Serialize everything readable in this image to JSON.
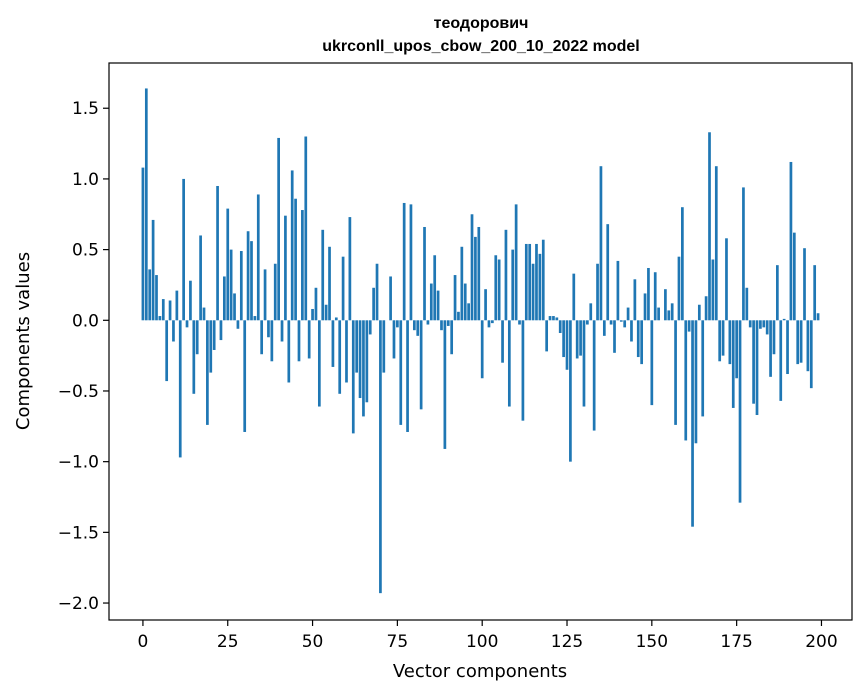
{
  "chart_data": {
    "type": "bar",
    "title_line1": "теодорович",
    "title_line2": "ukrconll_upos_cbow_200_10_2022 model",
    "xlabel": "Vector components",
    "ylabel": "Components values",
    "xlim": [
      -10,
      209
    ],
    "ylim": [
      -2.12,
      1.82
    ],
    "xticks": [
      0,
      25,
      50,
      75,
      100,
      125,
      150,
      175,
      200
    ],
    "xtick_labels": [
      "0",
      "25",
      "50",
      "75",
      "100",
      "125",
      "150",
      "175",
      "200"
    ],
    "yticks": [
      1.5,
      1.0,
      0.5,
      0.0,
      -0.5,
      -1.0,
      -1.5,
      -2.0
    ],
    "ytick_labels": [
      "1.5",
      "1.0",
      "0.5",
      "0.0",
      "−0.5",
      "−1.0",
      "−1.5",
      "−2.0"
    ],
    "bar_color": "#1f77b4",
    "grid": false,
    "x": [
      0,
      1,
      2,
      3,
      4,
      5,
      6,
      7,
      8,
      9,
      10,
      11,
      12,
      13,
      14,
      15,
      16,
      17,
      18,
      19,
      20,
      21,
      22,
      23,
      24,
      25,
      26,
      27,
      28,
      29,
      30,
      31,
      32,
      33,
      34,
      35,
      36,
      37,
      38,
      39,
      40,
      41,
      42,
      43,
      44,
      45,
      46,
      47,
      48,
      49,
      50,
      51,
      52,
      53,
      54,
      55,
      56,
      57,
      58,
      59,
      60,
      61,
      62,
      63,
      64,
      65,
      66,
      67,
      68,
      69,
      70,
      71,
      72,
      73,
      74,
      75,
      76,
      77,
      78,
      79,
      80,
      81,
      82,
      83,
      84,
      85,
      86,
      87,
      88,
      89,
      90,
      91,
      92,
      93,
      94,
      95,
      96,
      97,
      98,
      99,
      100,
      101,
      102,
      103,
      104,
      105,
      106,
      107,
      108,
      109,
      110,
      111,
      112,
      113,
      114,
      115,
      116,
      117,
      118,
      119,
      120,
      121,
      122,
      123,
      124,
      125,
      126,
      127,
      128,
      129,
      130,
      131,
      132,
      133,
      134,
      135,
      136,
      137,
      138,
      139,
      140,
      141,
      142,
      143,
      144,
      145,
      146,
      147,
      148,
      149,
      150,
      151,
      152,
      153,
      154,
      155,
      156,
      157,
      158,
      159,
      160,
      161,
      162,
      163,
      164,
      165,
      166,
      167,
      168,
      169,
      170,
      171,
      172,
      173,
      174,
      175,
      176,
      177,
      178,
      179,
      180,
      181,
      182,
      183,
      184,
      185,
      186,
      187,
      188,
      189,
      190,
      191,
      192,
      193,
      194,
      195,
      196,
      197,
      198,
      199
    ],
    "values": [
      1.08,
      1.64,
      0.36,
      0.71,
      0.32,
      0.03,
      0.15,
      -0.43,
      0.14,
      -0.15,
      0.21,
      -0.97,
      1.0,
      -0.05,
      0.28,
      -0.52,
      -0.24,
      0.6,
      0.09,
      -0.74,
      -0.37,
      -0.21,
      0.95,
      -0.14,
      0.31,
      0.79,
      0.5,
      0.19,
      -0.06,
      0.49,
      -0.79,
      0.63,
      0.56,
      0.03,
      0.89,
      -0.24,
      0.36,
      -0.12,
      -0.29,
      0.4,
      1.29,
      -0.15,
      0.74,
      -0.44,
      1.06,
      0.86,
      -0.29,
      0.78,
      1.3,
      -0.27,
      0.08,
      0.23,
      -0.61,
      0.64,
      0.11,
      0.52,
      -0.33,
      0.02,
      -0.52,
      0.45,
      -0.44,
      0.73,
      -0.8,
      -0.37,
      -0.55,
      -0.68,
      -0.58,
      -0.1,
      0.23,
      0.4,
      -1.93,
      -0.37,
      0.0,
      0.31,
      -0.27,
      -0.05,
      -0.74,
      0.83,
      -0.79,
      0.82,
      -0.07,
      -0.11,
      -0.63,
      0.66,
      -0.03,
      0.26,
      0.46,
      0.21,
      -0.07,
      -0.91,
      -0.04,
      -0.24,
      0.32,
      0.06,
      0.52,
      0.26,
      0.12,
      0.75,
      0.59,
      0.66,
      -0.41,
      0.22,
      -0.05,
      -0.02,
      0.46,
      0.43,
      -0.3,
      0.64,
      -0.61,
      0.5,
      0.82,
      -0.03,
      -0.71,
      0.54,
      0.54,
      0.4,
      0.54,
      0.47,
      0.57,
      -0.22,
      0.03,
      0.03,
      0.02,
      -0.09,
      -0.26,
      -0.35,
      -1.0,
      0.33,
      -0.27,
      -0.25,
      -0.61,
      -0.03,
      0.12,
      -0.78,
      0.4,
      1.09,
      -0.11,
      0.68,
      -0.03,
      -0.23,
      0.42,
      -0.01,
      -0.05,
      0.09,
      -0.15,
      0.29,
      -0.26,
      -0.31,
      0.19,
      0.37,
      -0.6,
      0.34,
      0.09,
      0.0,
      0.22,
      0.07,
      0.12,
      -0.74,
      0.45,
      0.8,
      -0.85,
      -0.08,
      -1.46,
      -0.87,
      0.11,
      -0.68,
      0.17,
      1.33,
      0.43,
      1.09,
      -0.29,
      -0.25,
      0.58,
      -0.31,
      -0.62,
      -0.41,
      -1.29,
      0.94,
      0.23,
      -0.05,
      -0.59,
      -0.67,
      -0.06,
      -0.05,
      -0.1,
      -0.4,
      -0.24,
      0.39,
      -0.57,
      0.01,
      -0.38,
      1.12,
      0.62,
      -0.31,
      -0.3,
      0.51,
      -0.36,
      -0.48,
      0.39,
      0.05
    ]
  }
}
